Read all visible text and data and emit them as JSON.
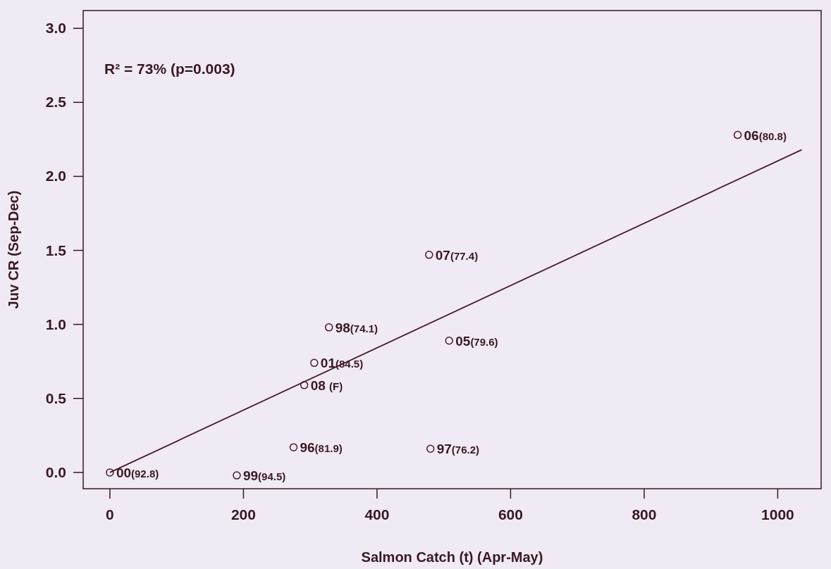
{
  "chart_data": {
    "type": "scatter",
    "xlabel": "Salmon Catch (t) (Apr-May)",
    "ylabel": "Juv CR (Sep-Dec)",
    "annotations": [
      "R² = 73% (p=0.003)",
      {
        "text": "00(92.8)",
        "x": 0,
        "y": 0
      },
      {
        "text": "99(94.5)",
        "x": 190,
        "y": -0.02
      },
      {
        "text": "96(81.9)",
        "x": 275,
        "y": 0.17
      },
      {
        "text": "97(76.2)",
        "x": 480,
        "y": 0.16
      },
      {
        "text": "08 (F)",
        "x": 291,
        "y": 0.59
      },
      {
        "text": "01(84.5)",
        "x": 306,
        "y": 0.74
      },
      {
        "text": "98(74.1)",
        "x": 328,
        "y": 0.98
      },
      {
        "text": "05(79.6)",
        "x": 508,
        "y": 0.89
      },
      {
        "text": "07(77.4)",
        "x": 478,
        "y": 1.47
      },
      {
        "text": "06(80.8)",
        "x": 940,
        "y": 2.28
      }
    ],
    "xlim": [
      -40,
      1065
    ],
    "ylim": [
      -0.11,
      3.12
    ],
    "xticks": [
      0,
      200,
      400,
      600,
      800,
      1000
    ],
    "yticks": [
      {
        "value": 0,
        "label": "0.0"
      },
      {
        "value": 0.5,
        "label": "0.5"
      },
      {
        "value": 1,
        "label": "1.0"
      },
      {
        "value": 1.5,
        "label": "1.5"
      },
      {
        "value": 2,
        "label": "2.0"
      },
      {
        "value": 2.5,
        "label": "2.5"
      },
      {
        "value": 3,
        "label": "3.0"
      }
    ],
    "grid": false,
    "series": [
      {
        "color": "#4a1a2a",
        "marker": "circle",
        "x": [
          0,
          190,
          275,
          480,
          291,
          306,
          328,
          508,
          478,
          940
        ],
        "values": [
          0,
          -0.02,
          0.17,
          0.16,
          0.59,
          0.74,
          0.98,
          0.89,
          1.47,
          2.28
        ]
      },
      {
        "type": "line",
        "color": "#4a1a2a",
        "line_style": "solid",
        "marker": "none",
        "x": [
          0,
          1036
        ],
        "values": [
          0,
          2.18
        ]
      }
    ]
  }
}
